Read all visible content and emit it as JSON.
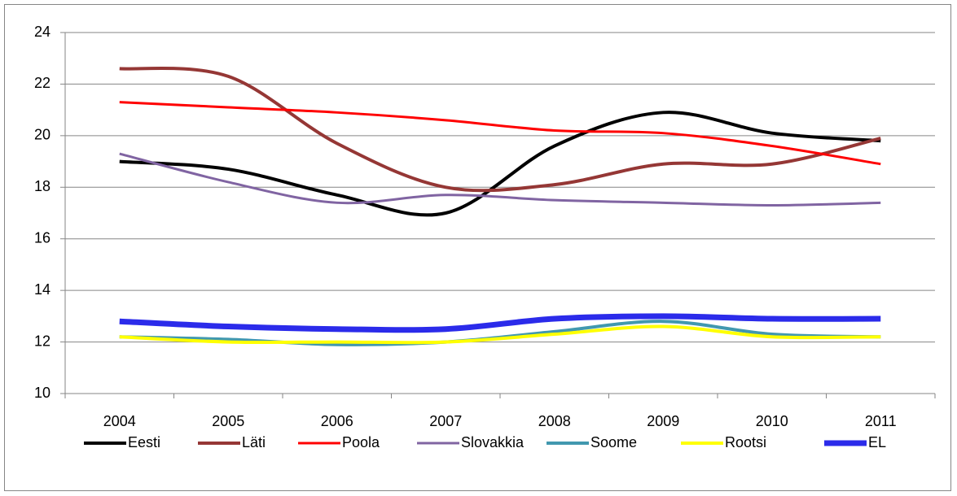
{
  "chart_data": {
    "type": "line",
    "categories": [
      "2004",
      "2005",
      "2006",
      "2007",
      "2008",
      "2009",
      "2010",
      "2011"
    ],
    "series": [
      {
        "name": "Eesti",
        "color": "#000000",
        "values": [
          19.0,
          18.7,
          17.7,
          17.0,
          19.6,
          20.9,
          20.1,
          19.8
        ]
      },
      {
        "name": "Läti",
        "color": "#953735",
        "values": [
          22.6,
          22.3,
          19.7,
          18.0,
          18.1,
          18.9,
          18.9,
          19.9
        ]
      },
      {
        "name": "Poola",
        "color": "#ff0000",
        "values": [
          21.3,
          21.1,
          20.9,
          20.6,
          20.2,
          20.1,
          19.6,
          18.9
        ]
      },
      {
        "name": "Slovakkia",
        "color": "#8064a2",
        "values": [
          19.3,
          18.2,
          17.4,
          17.7,
          17.5,
          17.4,
          17.3,
          17.4
        ]
      },
      {
        "name": "Soome",
        "color": "#4198af",
        "values": [
          12.2,
          12.1,
          11.9,
          12.0,
          12.4,
          12.8,
          12.3,
          12.2
        ]
      },
      {
        "name": "Rootsi",
        "color": "#ffff00",
        "values": [
          12.2,
          12.0,
          12.0,
          12.0,
          12.3,
          12.6,
          12.2,
          12.2
        ]
      },
      {
        "name": "EL",
        "color": "#2b2bea",
        "values": [
          12.8,
          12.6,
          12.5,
          12.5,
          12.9,
          13.0,
          12.9,
          12.9
        ]
      }
    ],
    "ylim": [
      10,
      24
    ],
    "yticks": [
      10,
      12,
      14,
      16,
      18,
      20,
      22,
      24
    ],
    "grid": true,
    "smooth": true,
    "legend": "bottom"
  }
}
